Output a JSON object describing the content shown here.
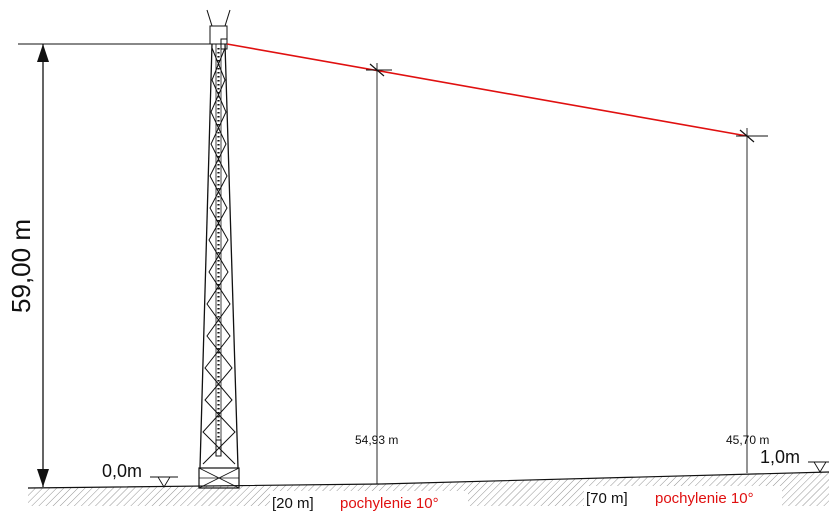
{
  "diagram": {
    "height_label": "59,00 m",
    "left_level_label": "0,0m",
    "right_level_label": "1,0m",
    "distance_20": "[20 m]",
    "distance_70": "[70 m]",
    "slope_label_1": "pochylenie 10°",
    "slope_label_2": "pochylenie 10°",
    "dim_20_label": "54,93 m",
    "dim_70_label": "45,70 m"
  },
  "colors": {
    "line": "#111111",
    "beam": "#e01010",
    "hatch": "#777777"
  }
}
